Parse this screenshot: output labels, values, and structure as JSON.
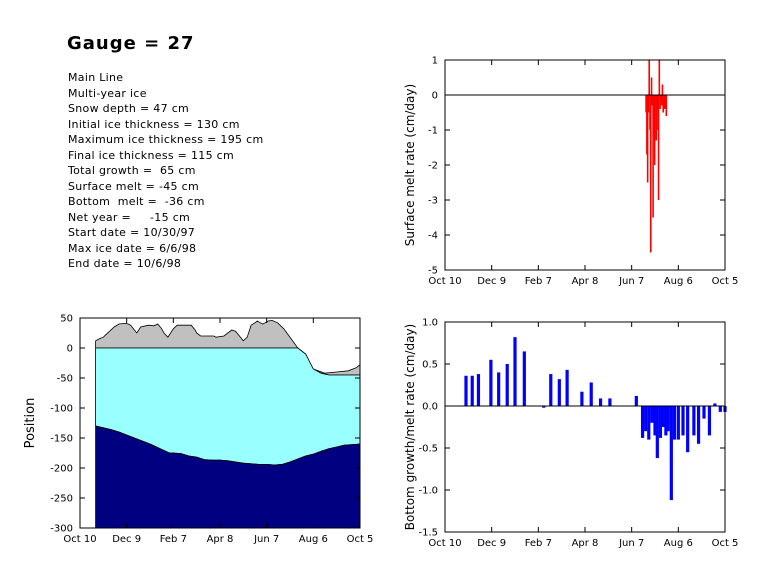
{
  "title": "Gauge = 27",
  "info": [
    "Main Line",
    "Multi-year ice",
    "Snow depth = 47 cm",
    "Initial ice thickness = 130 cm",
    "Maximum ice thickness = 195 cm",
    "Final ice thickness = 115 cm",
    "Total growth =  65 cm",
    "Surface melt = -45 cm",
    "Bottom  melt =  -36 cm",
    "Net year =     -15 cm",
    "Start date = 10/30/97",
    "Max ice date = 6/6/98",
    "End date = 10/6/98"
  ],
  "colors": {
    "snow": "#c0c0c0",
    "ice": "#99ffff",
    "water": "#000080",
    "surface_bars": "#ff0000",
    "bottom_bars": "#0000ff"
  },
  "chart_data": [
    {
      "id": "position",
      "type": "area",
      "ylabel": "Position",
      "xlabel": "",
      "x_tick_labels": [
        "Oct 10",
        "Dec 9",
        "Feb 7",
        "Apr 8",
        "Jun 7",
        "Aug 6",
        "Oct 5"
      ],
      "xlim_days": [
        0,
        360
      ],
      "ylim": [
        -300,
        50
      ],
      "y_ticks": [
        50,
        0,
        -50,
        -100,
        -150,
        -200,
        -250,
        -300
      ],
      "series": [
        {
          "name": "",
          "role": "snow surface",
          "x_days": [
            20,
            23,
            26,
            30,
            33,
            44,
            50,
            58,
            62,
            65,
            73,
            78,
            88,
            95,
            100,
            105,
            108,
            113,
            120,
            125,
            130,
            137,
            143,
            148,
            150,
            155,
            165,
            172,
            175,
            185,
            195,
            200,
            210,
            215,
            220,
            225,
            228,
            232,
            235,
            238,
            242,
            247,
            254,
            262,
            270,
            280,
            290,
            300,
            315,
            330,
            345,
            355,
            360
          ],
          "values": [
            12,
            14,
            16,
            18,
            22,
            35,
            40,
            41,
            40,
            38,
            25,
            35,
            38,
            37,
            40,
            32,
            25,
            18,
            32,
            38,
            38,
            38,
            38,
            30,
            25,
            20,
            20,
            20,
            18,
            20,
            30,
            28,
            12,
            18,
            38,
            42,
            45,
            42,
            40,
            42,
            45,
            46,
            42,
            32,
            18,
            0,
            -10,
            -35,
            -42,
            -40,
            -38,
            -33,
            -28
          ]
        },
        {
          "name": "",
          "role": "ice surface",
          "x_days": [
            20,
            280,
            290,
            300,
            310,
            320,
            330,
            345,
            360
          ],
          "values": [
            0,
            0,
            -10,
            -35,
            -42,
            -45,
            -45,
            -45,
            -45
          ]
        },
        {
          "name": "",
          "role": "ice bottom",
          "x_days": [
            20,
            30,
            40,
            50,
            60,
            70,
            80,
            90,
            100,
            110,
            115,
            120,
            130,
            140,
            150,
            160,
            170,
            180,
            190,
            200,
            210,
            220,
            230,
            240,
            250,
            260,
            270,
            280,
            290,
            300,
            310,
            320,
            330,
            340,
            350,
            360
          ],
          "values": [
            -130,
            -133,
            -136,
            -140,
            -145,
            -150,
            -155,
            -160,
            -166,
            -172,
            -175,
            -175,
            -176,
            -180,
            -182,
            -186,
            -187,
            -187,
            -188,
            -190,
            -192,
            -193,
            -194,
            -194,
            -195,
            -194,
            -190,
            -185,
            -180,
            -177,
            -172,
            -168,
            -165,
            -162,
            -161,
            -160
          ]
        }
      ]
    },
    {
      "id": "surface-melt",
      "type": "bar",
      "ylabel": "Surface melt rate (cm/day)",
      "xlabel": "",
      "x_tick_labels": [
        "Oct 10",
        "Dec 9",
        "Feb 7",
        "Apr 8",
        "Jun 7",
        "Aug 6",
        "Oct 5"
      ],
      "xlim_days": [
        0,
        360
      ],
      "ylim": [
        -5,
        1
      ],
      "y_ticks": [
        1,
        0,
        -1,
        -2,
        -3,
        -4,
        -5
      ],
      "series": [
        {
          "name": "",
          "x_days": [
            258,
            259,
            260,
            261,
            262,
            263,
            264,
            265,
            266,
            267,
            268,
            269,
            270,
            271,
            272,
            273,
            274,
            275,
            276,
            277,
            278,
            279,
            280,
            281,
            282,
            283,
            284,
            285,
            286,
            287,
            288,
            289,
            290,
            291,
            292
          ],
          "values": [
            -0.5,
            -1.7,
            -2.5,
            -0.5,
            1.0,
            -1.0,
            -4.5,
            0.5,
            -0.3,
            -3.5,
            -1.2,
            -2.0,
            -0.3,
            -1.3,
            -1.0,
            -0.4,
            -3.0,
            1.0,
            -0.4,
            -0.2,
            -0.3,
            0.3,
            -0.5,
            -0.2,
            -0.4,
            -0.2,
            -0.6,
            0,
            0,
            0,
            0,
            0,
            0,
            0,
            0
          ]
        }
      ]
    },
    {
      "id": "bottom-growth",
      "type": "bar",
      "ylabel": "Bottom growth/melt rate (cm/day)",
      "xlabel": "",
      "x_tick_labels": [
        "Oct 10",
        "Dec 9",
        "Feb 7",
        "Apr 8",
        "Jun 7",
        "Aug 6",
        "Oct 5"
      ],
      "xlim_days": [
        0,
        360
      ],
      "ylim": [
        -1.5,
        1.0
      ],
      "y_ticks": [
        1.0,
        0.5,
        0.0,
        -0.5,
        -1.0,
        -1.5
      ],
      "series": [
        {
          "name": "",
          "x_days": [
            27,
            35,
            43,
            59,
            69,
            80,
            90,
            102,
            127,
            136,
            147,
            157,
            176,
            188,
            200,
            212,
            246,
            254,
            258,
            262,
            266,
            270,
            273,
            277,
            281,
            284,
            287,
            291,
            295,
            300,
            306,
            312,
            320,
            326,
            333,
            340,
            347,
            354,
            360
          ],
          "values": [
            0.36,
            0.36,
            0.38,
            0.55,
            0.4,
            0.5,
            0.82,
            0.65,
            -0.02,
            0.38,
            0.32,
            0.43,
            0.17,
            0.28,
            0.09,
            0.09,
            0.12,
            -0.38,
            -0.3,
            -0.4,
            -0.2,
            -0.35,
            -0.62,
            -0.38,
            -0.25,
            -0.35,
            -0.3,
            -1.12,
            -0.4,
            -0.4,
            -0.35,
            -0.55,
            -0.35,
            -0.45,
            -0.15,
            -0.35,
            0.03,
            -0.07,
            -0.07
          ]
        }
      ]
    }
  ]
}
